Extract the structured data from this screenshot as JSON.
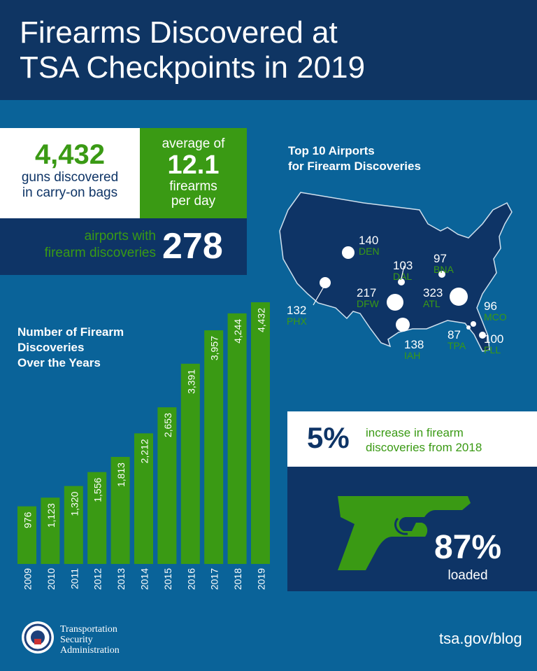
{
  "header": {
    "title_line1": "Firearms Discovered at",
    "title_line2": "TSA Checkpoints in 2019"
  },
  "stats": {
    "total": "4,432",
    "total_label_1": "guns discovered",
    "total_label_2": "in carry-on bags",
    "avg_pre": "average of",
    "avg_value": "12.1",
    "avg_label_1": "firearms",
    "avg_label_2": "per day",
    "airports_label_1": "airports with",
    "airports_label_2": "firearm discoveries",
    "airports_value": "278"
  },
  "map": {
    "title_1": "Top 10 Airports",
    "title_2": "for Firearm Discoveries",
    "airports": [
      {
        "code": "DEN",
        "count": "140"
      },
      {
        "code": "DAL",
        "count": "103"
      },
      {
        "code": "BNA",
        "count": "97"
      },
      {
        "code": "PHX",
        "count": "132"
      },
      {
        "code": "DFW",
        "count": "217"
      },
      {
        "code": "ATL",
        "count": "323"
      },
      {
        "code": "MCO",
        "count": "96"
      },
      {
        "code": "IAH",
        "count": "138"
      },
      {
        "code": "TPA",
        "count": "87"
      },
      {
        "code": "FLL",
        "count": "100"
      }
    ]
  },
  "increase": {
    "value": "5%",
    "text_1": "increase in firearm",
    "text_2": "discoveries from 2018"
  },
  "loaded": {
    "value": "87%",
    "label": "loaded"
  },
  "colors": {
    "navy": "#0e3466",
    "green": "#3a9a14",
    "background": "#0a6399"
  },
  "chart_data": {
    "type": "bar",
    "title_1": "Number of Firearm",
    "title_2": "Discoveries",
    "title_3": "Over the Years",
    "categories": [
      "2009",
      "2010",
      "2011",
      "2012",
      "2013",
      "2014",
      "2015",
      "2016",
      "2017",
      "2018",
      "2019"
    ],
    "values": [
      976,
      1123,
      1320,
      1556,
      1813,
      2212,
      2653,
      3391,
      3957,
      4244,
      4432
    ],
    "labels": [
      "976",
      "1,123",
      "1,320",
      "1,556",
      "1,813",
      "2,212",
      "2,653",
      "3,391",
      "3,957",
      "4,244",
      "4,432"
    ],
    "ylim": [
      0,
      4432
    ],
    "grid": false
  },
  "footer": {
    "agency_1": "Transportation",
    "agency_2": "Security",
    "agency_3": "Administration",
    "logo_text": "U.S. Department of Homeland Security",
    "url": "tsa.gov/blog"
  }
}
